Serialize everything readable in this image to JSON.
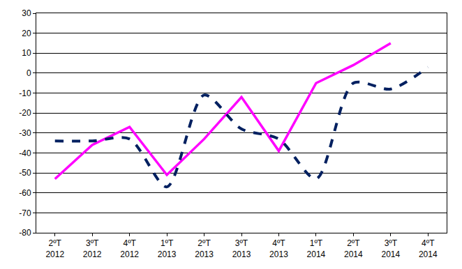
{
  "chart_data": {
    "type": "line",
    "categories": [
      "2ºT 2012",
      "3ºT 2012",
      "4ºT 2012",
      "1ºT 2013",
      "2ºT 2013",
      "3ºT 2013",
      "4ºT 2013",
      "1ºT 2014",
      "2ºT 2014",
      "3ºT 2014",
      "4ºT 2014"
    ],
    "series": [
      {
        "color": "#ff00ff",
        "line_style": "solid",
        "values": [
          -53,
          -36,
          -27,
          -51,
          -33,
          -12,
          -39,
          -5,
          4,
          15,
          null
        ]
      },
      {
        "color": "#002060",
        "line_style": "dashed",
        "values": [
          -34,
          -34,
          -33,
          -57,
          -11,
          -28,
          -33,
          -53,
          -5,
          -8,
          3
        ]
      }
    ],
    "ylim": [
      -80,
      30
    ],
    "yticks": [
      -80,
      -70,
      -60,
      -50,
      -40,
      -30,
      -20,
      -10,
      0,
      10,
      20,
      30
    ],
    "grid": true
  }
}
